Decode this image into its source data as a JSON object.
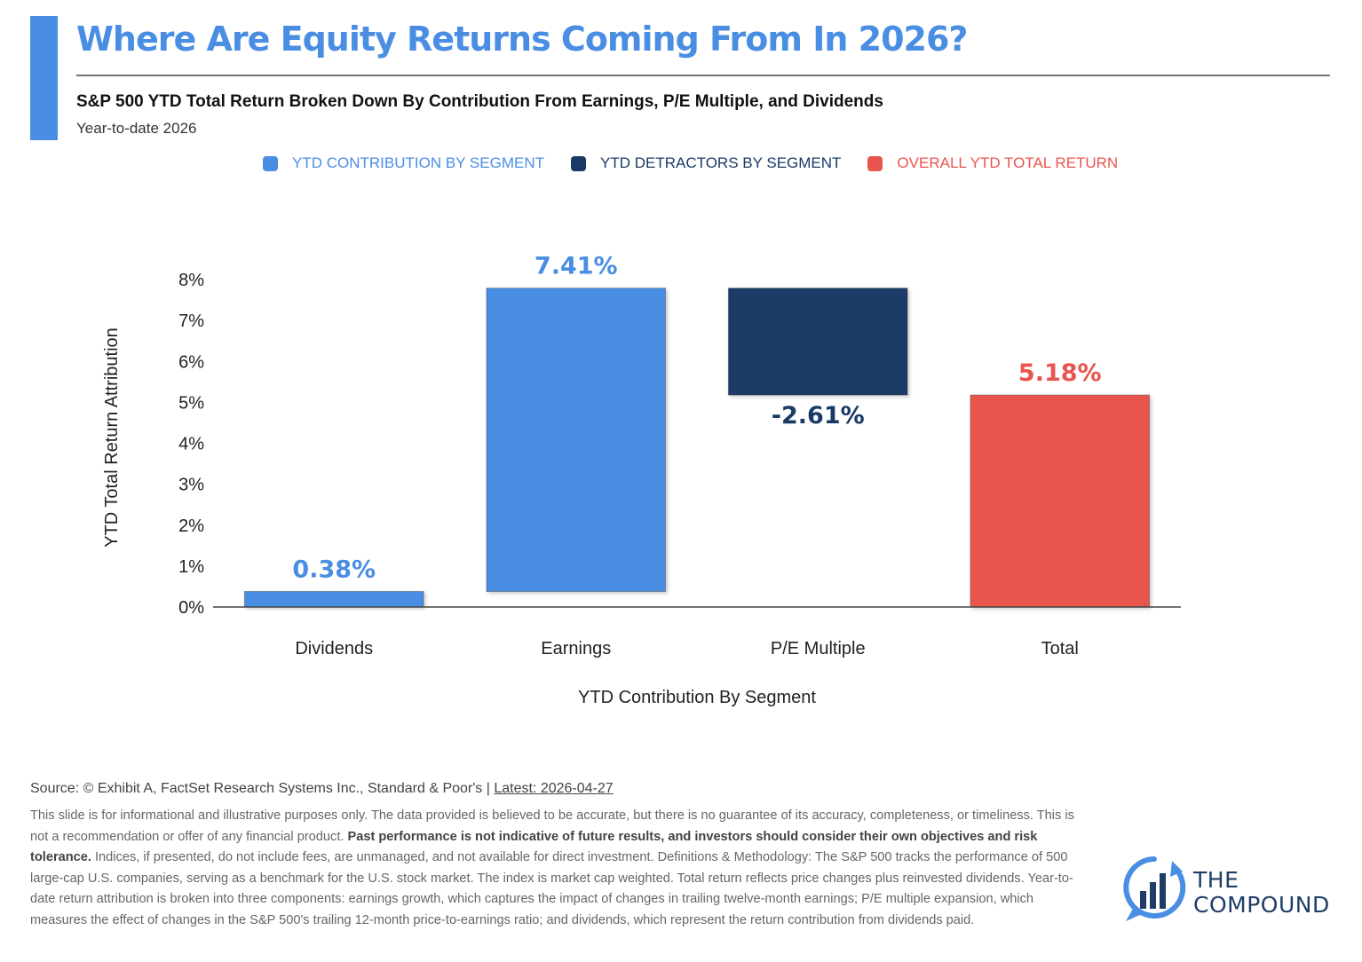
{
  "header": {
    "title": "Where Are Equity Returns Coming From In 2026?",
    "subtitle": "S&P 500 YTD Total Return Broken Down By Contribution From Earnings, P/E Multiple, and Dividends",
    "period": "Year-to-date 2026"
  },
  "legend": [
    {
      "label": "YTD CONTRIBUTION BY SEGMENT",
      "color": "#4a8ee3"
    },
    {
      "label": "YTD DETRACTORS BY SEGMENT",
      "color": "#1a3a66"
    },
    {
      "label": "OVERALL YTD TOTAL RETURN",
      "color": "#e8554e"
    }
  ],
  "chart_data": {
    "type": "bar",
    "subtype": "waterfall",
    "categories": [
      "Dividends",
      "Earnings",
      "P/E Multiple",
      "Total"
    ],
    "values": [
      0.38,
      7.41,
      -2.61,
      5.18
    ],
    "data_labels": [
      "0.38%",
      "7.41%",
      "-2.61%",
      "5.18%"
    ],
    "bar_kind": [
      "contribution",
      "contribution",
      "detractor",
      "total"
    ],
    "xlabel": "YTD Contribution By Segment",
    "ylabel": "YTD Total Return Attribution",
    "ylim": [
      0,
      8
    ],
    "yticks": [
      0,
      1,
      2,
      3,
      4,
      5,
      6,
      7,
      8
    ],
    "ytick_labels": [
      "0%",
      "1%",
      "2%",
      "3%",
      "4%",
      "5%",
      "6%",
      "7%",
      "8%"
    ],
    "grid": false,
    "legend_position": "top",
    "colors": {
      "contribution": "#4a8ee3",
      "detractor": "#1a3a66",
      "total": "#e8554e"
    }
  },
  "footer": {
    "source_text": "Source: © Exhibit A, FactSet Research Systems Inc., Standard & Poor's | ",
    "latest_text": "Latest: 2026-04-27",
    "disclaimer_1": "This slide is for informational and illustrative purposes only. The data provided is believed to be accurate, but there is no guarantee of its accuracy, completeness, or timeliness. This is not a recommendation or offer of any financial product. ",
    "disclaimer_bold": "Past performance is not indicative of future results, and investors should consider their own objectives and risk tolerance.",
    "disclaimer_2": " Indices, if presented, do not include fees, are unmanaged, and not available for direct investment. Definitions & Methodology: The S&P 500 tracks the performance of 500 large-cap U.S. companies, serving as a benchmark for the U.S. stock market. The index is market cap weighted. Total return reflects price changes plus reinvested dividends. Year-to-date return attribution is broken into three components: earnings growth, which captures the impact of changes in trailing twelve-month earnings; P/E multiple expansion, which measures the effect of changes in the S&P 500's trailing 12-month price-to-earnings ratio; and dividends, which represent the return contribution from dividends paid."
  },
  "logo": {
    "line1": "THE",
    "line2": "COMPOUND",
    "icon": "compound-logo-icon",
    "color": "#1f3d66",
    "accent": "#4a8ee3"
  }
}
